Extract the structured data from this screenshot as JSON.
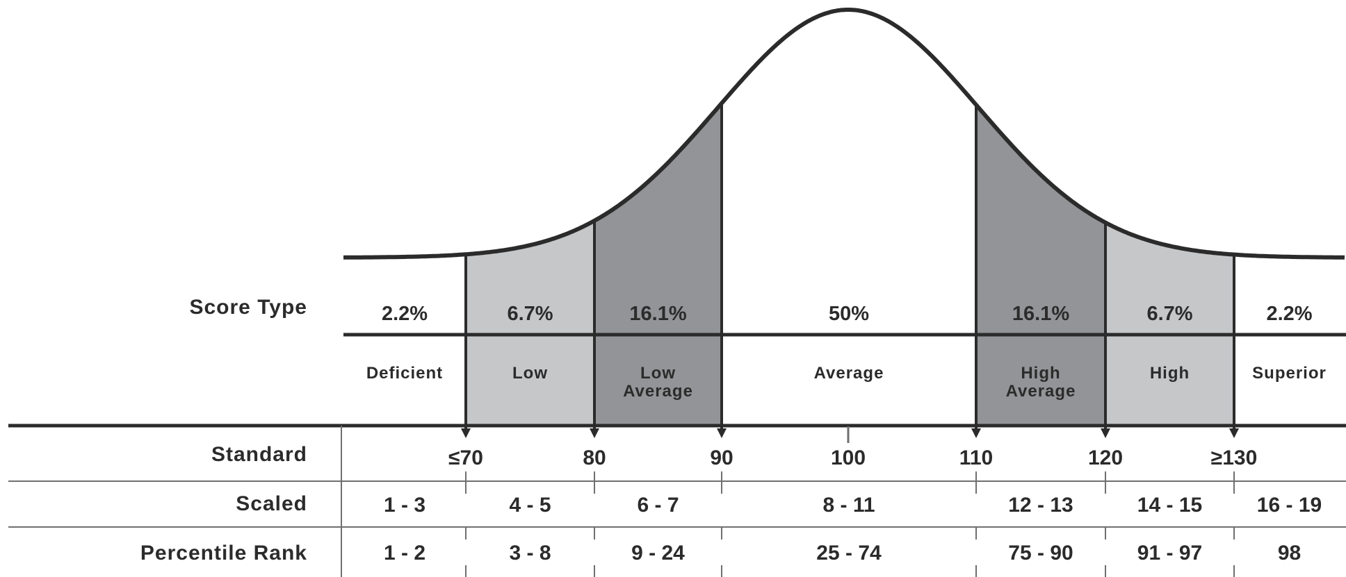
{
  "row_labels": {
    "score_type": "Score Type",
    "standard": "Standard",
    "scaled": "Scaled",
    "percentile_rank": "Percentile Rank"
  },
  "bands": [
    {
      "percent": "2.2%",
      "classification": [
        "Deficient"
      ],
      "scaled": "1 - 3",
      "percentile": "1 - 2",
      "shade": "#ffffff"
    },
    {
      "percent": "6.7%",
      "classification": [
        "Low"
      ],
      "scaled": "4 - 5",
      "percentile": "3 - 8",
      "shade": "#c6c7c9"
    },
    {
      "percent": "16.1%",
      "classification": [
        "Low",
        "Average"
      ],
      "scaled": "6 - 7",
      "percentile": "9 - 24",
      "shade": "#939497"
    },
    {
      "percent": "50%",
      "classification": [
        "Average"
      ],
      "scaled": "8 - 11",
      "percentile": "25 - 74",
      "shade": "#ffffff"
    },
    {
      "percent": "16.1%",
      "classification": [
        "High",
        "Average"
      ],
      "scaled": "12 - 13",
      "percentile": "75 - 90",
      "shade": "#939497"
    },
    {
      "percent": "6.7%",
      "classification": [
        "High"
      ],
      "scaled": "14 - 15",
      "percentile": "91 - 97",
      "shade": "#c6c7c9"
    },
    {
      "percent": "2.2%",
      "classification": [
        "Superior"
      ],
      "scaled": "16 - 19",
      "percentile": "98",
      "shade": "#ffffff"
    }
  ],
  "standard_scores": [
    "≤70",
    "80",
    "90",
    "100",
    "110",
    "120",
    "≥130"
  ],
  "colors": {
    "line": "#2b2b2b",
    "grid": "#6f6f6f",
    "light_band": "#c6c7c9",
    "dark_band": "#939497"
  }
}
